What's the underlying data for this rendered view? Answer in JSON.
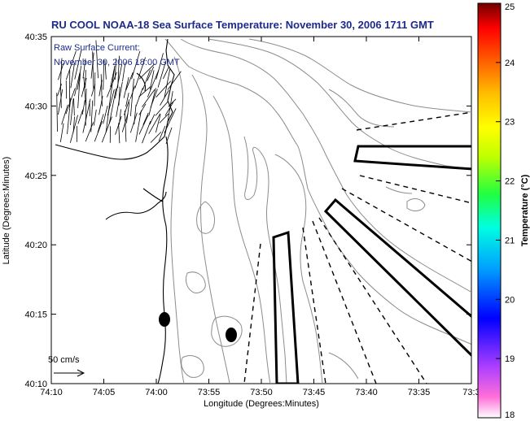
{
  "title": "RU COOL  NOAA-18  Sea Surface Temperature:  November 30, 2006 1711 GMT",
  "overlay": {
    "line1": "Raw Surface Current:",
    "line2": "November 30, 2006 18:00 GMT"
  },
  "scale": {
    "label": "50 cm/s"
  },
  "axes": {
    "xlabel": "Longitude (Degrees:Minutes)",
    "ylabel": "Latitude (Degrees:Minutes)",
    "xticks": [
      "74:10",
      "74:05",
      "74:00",
      "73:55",
      "73:50",
      "73:45",
      "73:40",
      "73:35",
      "73:3"
    ],
    "yticks": [
      "40:35",
      "40:30",
      "40:25",
      "40:20",
      "40:15",
      "40:10"
    ]
  },
  "colorbar": {
    "label": "Temperature (°C)",
    "min": 18,
    "max": 25,
    "ticks": [
      "25",
      "24",
      "23",
      "22",
      "21",
      "20",
      "19",
      "18"
    ],
    "colors": [
      "#ff6fd8",
      "#b040ff",
      "#0000ff",
      "#00a0ff",
      "#00ffe0",
      "#20ff40",
      "#c0ff00",
      "#ffff00",
      "#ffc000",
      "#ff6000",
      "#ff0000",
      "#700000"
    ]
  },
  "markers": [
    {
      "name": "buoy-west"
    },
    {
      "name": "buoy-east"
    }
  ]
}
